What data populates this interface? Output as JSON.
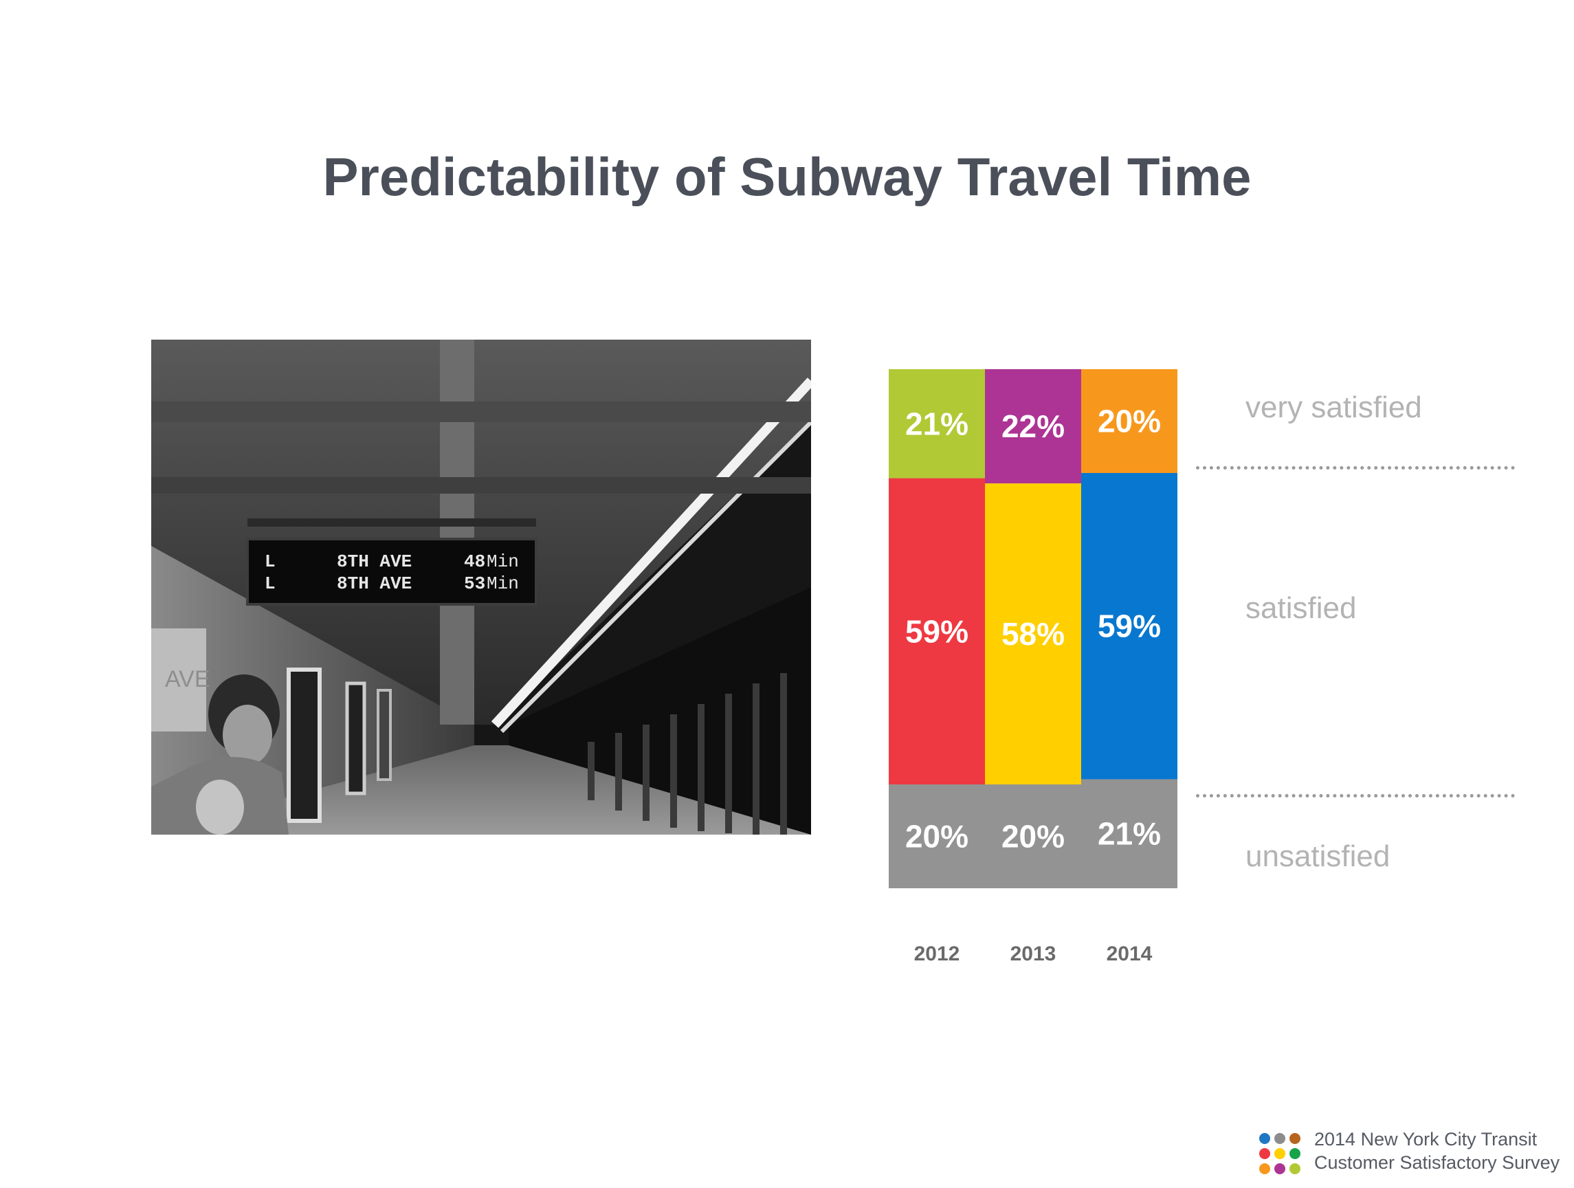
{
  "page": {
    "title": "Predictability of Subway Travel Time"
  },
  "photo": {
    "description_icon": "subway-platform-photo",
    "sign_rows": [
      {
        "line": "L",
        "destination": "8TH AVE",
        "minutes": "48",
        "unit": "Min"
      },
      {
        "line": "L",
        "destination": "8TH AVE",
        "minutes": "53",
        "unit": "Min"
      }
    ],
    "station_fragment": "AVE"
  },
  "chart_data": {
    "type": "bar",
    "stacked": true,
    "categories": [
      "2012",
      "2013",
      "2014"
    ],
    "series": [
      {
        "name": "unsatisfied",
        "values": [
          20,
          20,
          21
        ],
        "labels": [
          "20%",
          "20%",
          "21%"
        ],
        "colors": [
          "#939393",
          "#939393",
          "#939393"
        ]
      },
      {
        "name": "satisfied",
        "values": [
          59,
          58,
          59
        ],
        "labels": [
          "59%",
          "58%",
          "59%"
        ],
        "colors": [
          "#ee3942",
          "#ffcf00",
          "#0877d0"
        ]
      },
      {
        "name": "very satisfied",
        "values": [
          21,
          22,
          20
        ],
        "labels": [
          "21%",
          "22%",
          "20%"
        ],
        "colors": [
          "#b1c935",
          "#ad3494",
          "#f7981d"
        ]
      }
    ],
    "legend_placement": "right",
    "ylim": [
      0,
      100
    ],
    "grid": false
  },
  "legend": {
    "very_satisfied": "very satisfied",
    "satisfied": "satisfied",
    "unsatisfied": "unsatisfied"
  },
  "footer": {
    "line1": "2014 New York City Transit",
    "line2": "Customer Satisfactory Survey",
    "dot_colors": [
      "#1f77c4",
      "#8c8c8c",
      "#b5651d",
      "#ee3942",
      "#ffcf00",
      "#17a34a",
      "#f7981d",
      "#ad3494",
      "#b1c935"
    ]
  }
}
